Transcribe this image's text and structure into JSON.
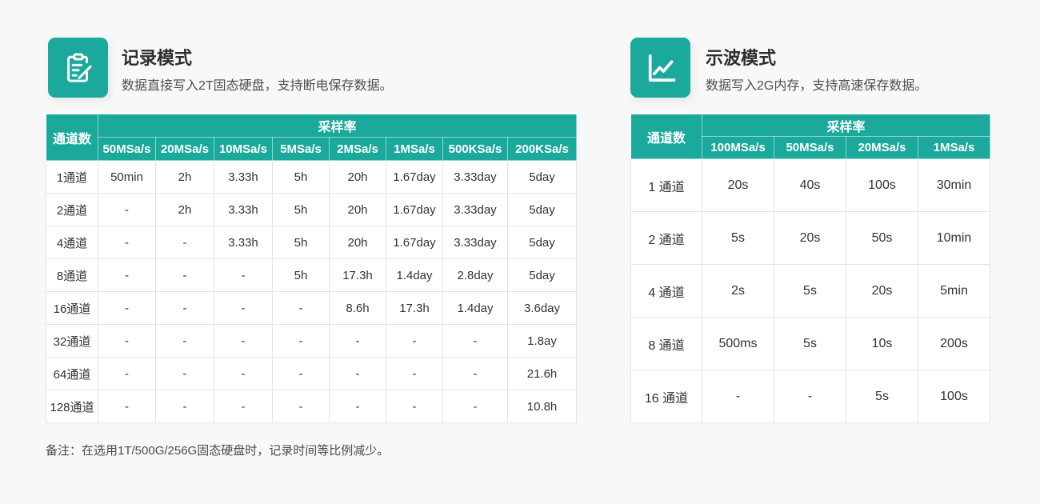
{
  "theme": {
    "accent": "#1BA99C",
    "header_text": "#ffffff",
    "body_text": "#333333",
    "border": "#e3e3e3",
    "page_bg": "#f8f8f8"
  },
  "record_mode": {
    "icon": "clipboard-edit-icon",
    "title": "记录模式",
    "subtitle": "数据直接写入2T固态硬盘，支持断电保存数据。",
    "table": {
      "channel_header": "通道数",
      "rate_header": "采样率",
      "columns": [
        "50MSa/s",
        "20MSa/s",
        "10MSa/s",
        "5MSa/s",
        "2MSa/s",
        "1MSa/s",
        "500KSa/s",
        "200KSa/s"
      ],
      "rows": [
        {
          "channel": "1通道",
          "values": [
            "50min",
            "2h",
            "3.33h",
            "5h",
            "20h",
            "1.67day",
            "3.33day",
            "5day"
          ]
        },
        {
          "channel": "2通道",
          "values": [
            "-",
            "2h",
            "3.33h",
            "5h",
            "20h",
            "1.67day",
            "3.33day",
            "5day"
          ]
        },
        {
          "channel": "4通道",
          "values": [
            "-",
            "-",
            "3.33h",
            "5h",
            "20h",
            "1.67day",
            "3.33day",
            "5day"
          ]
        },
        {
          "channel": "8通道",
          "values": [
            "-",
            "-",
            "-",
            "5h",
            "17.3h",
            "1.4day",
            "2.8day",
            "5day"
          ]
        },
        {
          "channel": "16通道",
          "values": [
            "-",
            "-",
            "-",
            "-",
            "8.6h",
            "17.3h",
            "1.4day",
            "3.6day"
          ]
        },
        {
          "channel": "32通道",
          "values": [
            "-",
            "-",
            "-",
            "-",
            "-",
            "-",
            "-",
            "1.8ay"
          ]
        },
        {
          "channel": "64通道",
          "values": [
            "-",
            "-",
            "-",
            "-",
            "-",
            "-",
            "-",
            "21.6h"
          ]
        },
        {
          "channel": "128通道",
          "values": [
            "-",
            "-",
            "-",
            "-",
            "-",
            "-",
            "-",
            "10.8h"
          ]
        }
      ]
    },
    "note": "备注：在选用1T/500G/256G固态硬盘时，记录时间等比例减少。"
  },
  "scope_mode": {
    "icon": "line-chart-icon",
    "title": "示波模式",
    "subtitle": "数据写入2G内存，支持高速保存数据。",
    "table": {
      "channel_header": "通道数",
      "rate_header": "采样率",
      "columns": [
        "100MSa/s",
        "50MSa/s",
        "20MSa/s",
        "1MSa/s"
      ],
      "rows": [
        {
          "channel": "1 通道",
          "values": [
            "20s",
            "40s",
            "100s",
            "30min"
          ]
        },
        {
          "channel": "2 通道",
          "values": [
            "5s",
            "20s",
            "50s",
            "10min"
          ]
        },
        {
          "channel": "4 通道",
          "values": [
            "2s",
            "5s",
            "20s",
            "5min"
          ]
        },
        {
          "channel": "8 通道",
          "values": [
            "500ms",
            "5s",
            "10s",
            "200s"
          ]
        },
        {
          "channel": "16 通道",
          "values": [
            "-",
            "-",
            "5s",
            "100s"
          ]
        }
      ]
    }
  }
}
